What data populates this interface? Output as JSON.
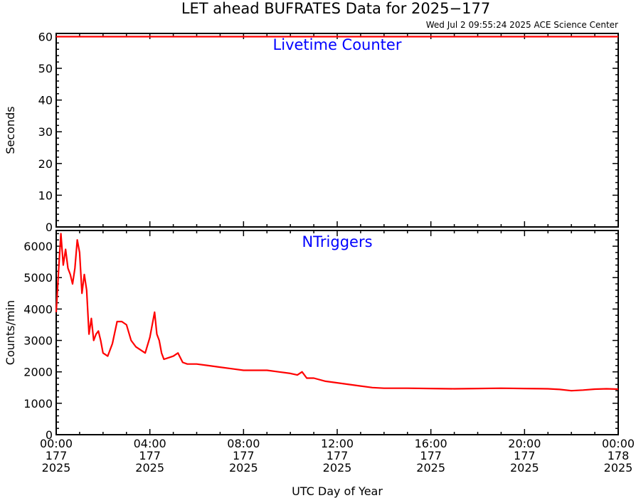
{
  "header": {
    "title": "LET ahead BUFRATES Data for 2025−177",
    "timestamp": "Wed Jul  2 09:55:24 2025 ACE Science Center"
  },
  "x_axis": {
    "label": "UTC Day of Year",
    "ticks": [
      {
        "time": "00:00",
        "day": "177",
        "year": "2025"
      },
      {
        "time": "04:00",
        "day": "177",
        "year": "2025"
      },
      {
        "time": "08:00",
        "day": "177",
        "year": "2025"
      },
      {
        "time": "12:00",
        "day": "177",
        "year": "2025"
      },
      {
        "time": "16:00",
        "day": "177",
        "year": "2025"
      },
      {
        "time": "20:00",
        "day": "177",
        "year": "2025"
      },
      {
        "time": "00:00",
        "day": "178",
        "year": "2025"
      }
    ]
  },
  "colors": {
    "series": "#ff0000",
    "panel_title": "#0000ff",
    "axes": "#000000"
  },
  "chart_data": [
    {
      "type": "line",
      "panel_title": "Livetime Counter",
      "ylabel": "Seconds",
      "xlim": [
        0,
        24
      ],
      "ylim": [
        0,
        61
      ],
      "yticks": [
        0,
        10,
        20,
        30,
        40,
        50,
        60
      ],
      "series": [
        {
          "x": [
            0,
            24
          ],
          "y": [
            60,
            60
          ]
        }
      ]
    },
    {
      "type": "line",
      "panel_title": "NTriggers",
      "ylabel": "Counts/min",
      "xlim": [
        0,
        24
      ],
      "ylim": [
        0,
        6500
      ],
      "yticks": [
        0,
        1000,
        2000,
        3000,
        4000,
        5000,
        6000
      ],
      "series": [
        {
          "x": [
            0,
            0.1,
            0.2,
            0.3,
            0.4,
            0.5,
            0.6,
            0.7,
            0.8,
            0.9,
            1.0,
            1.1,
            1.2,
            1.3,
            1.4,
            1.5,
            1.6,
            1.7,
            1.8,
            1.9,
            2.0,
            2.2,
            2.4,
            2.6,
            2.8,
            3.0,
            3.2,
            3.4,
            3.6,
            3.8,
            4.0,
            4.2,
            4.3,
            4.4,
            4.5,
            4.6,
            4.8,
            5.0,
            5.2,
            5.4,
            5.6,
            6.0,
            6.5,
            7.0,
            7.5,
            8.0,
            8.5,
            9.0,
            9.5,
            10.0,
            10.3,
            10.5,
            10.7,
            11.0,
            11.5,
            12.0,
            12.5,
            13.0,
            13.5,
            14.0,
            15.0,
            16.0,
            17.0,
            18.0,
            19.0,
            20.0,
            21.0,
            21.5,
            22.0,
            22.5,
            23.0,
            23.5,
            24.0
          ],
          "y": [
            3900,
            5200,
            6400,
            5400,
            5900,
            5300,
            5100,
            4800,
            5300,
            6200,
            5800,
            4500,
            5100,
            4600,
            3200,
            3700,
            3000,
            3200,
            3300,
            3000,
            2600,
            2500,
            2900,
            3600,
            3600,
            3500,
            3000,
            2800,
            2700,
            2600,
            3100,
            3900,
            3200,
            3000,
            2600,
            2400,
            2450,
            2500,
            2600,
            2300,
            2250,
            2250,
            2200,
            2150,
            2100,
            2050,
            2050,
            2050,
            2000,
            1950,
            1900,
            2000,
            1800,
            1800,
            1700,
            1650,
            1600,
            1550,
            1500,
            1480,
            1480,
            1470,
            1460,
            1470,
            1480,
            1470,
            1460,
            1440,
            1400,
            1420,
            1450,
            1460,
            1450
          ]
        }
      ]
    }
  ]
}
